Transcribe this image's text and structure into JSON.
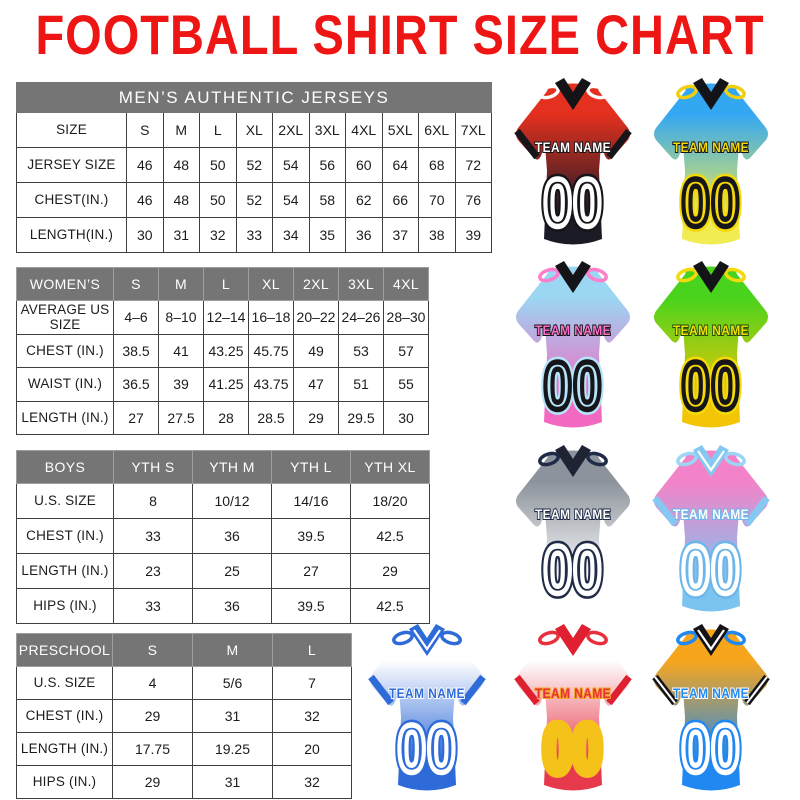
{
  "title": "FOOTBALL SHIRT SIZE CHART",
  "accent_color": "#ee1515",
  "table_header_bg": "#757575",
  "tables": {
    "mens": {
      "title": "MEN’S AUTHENTIC JERSEYS",
      "rows": [
        [
          "SIZE",
          "S",
          "M",
          "L",
          "XL",
          "2XL",
          "3XL",
          "4XL",
          "5XL",
          "6XL",
          "7XL"
        ],
        [
          "JERSEY SIZE",
          "46",
          "48",
          "50",
          "52",
          "54",
          "56",
          "60",
          "64",
          "68",
          "72"
        ],
        [
          "CHEST(IN.)",
          "46",
          "48",
          "50",
          "52",
          "54",
          "58",
          "62",
          "66",
          "70",
          "76"
        ],
        [
          "LENGTH(IN.)",
          "30",
          "31",
          "32",
          "33",
          "34",
          "35",
          "36",
          "37",
          "38",
          "39"
        ]
      ]
    },
    "womens": {
      "header_row": [
        "WOMEN’S",
        "S",
        "M",
        "L",
        "XL",
        "2XL",
        "3XL",
        "4XL"
      ],
      "rows": [
        [
          "AVERAGE US SIZE",
          "4–6",
          "8–10",
          "12–14",
          "16–18",
          "20–22",
          "24–26",
          "28–30"
        ],
        [
          "CHEST (IN.)",
          "38.5",
          "41",
          "43.25",
          "45.75",
          "49",
          "53",
          "57"
        ],
        [
          "WAIST (IN.)",
          "36.5",
          "39",
          "41.25",
          "43.75",
          "47",
          "51",
          "55"
        ],
        [
          "LENGTH (IN.)",
          "27",
          "27.5",
          "28",
          "28.5",
          "29",
          "29.5",
          "30"
        ]
      ]
    },
    "boys": {
      "header_row": [
        "BOYS",
        "YTH S",
        "YTH M",
        "YTH L",
        "YTH XL"
      ],
      "rows": [
        [
          "U.S. SIZE",
          "8",
          "10/12",
          "14/16",
          "18/20"
        ],
        [
          "CHEST (IN.)",
          "33",
          "36",
          "39.5",
          "42.5"
        ],
        [
          "LENGTH (IN.)",
          "23",
          "25",
          "27",
          "29"
        ],
        [
          "HIPS (IN.)",
          "33",
          "36",
          "39.5",
          "42.5"
        ]
      ]
    },
    "preschool": {
      "header_row": [
        "PRESCHOOL",
        "S",
        "M",
        "L"
      ],
      "rows": [
        [
          "U.S. SIZE",
          "4",
          "5/6",
          "7"
        ],
        [
          "CHEST (IN.)",
          "29",
          "31",
          "32"
        ],
        [
          "LENGTH (IN.)",
          "17.75",
          "19.25",
          "20"
        ],
        [
          "HIPS (IN.)",
          "29",
          "31",
          "32"
        ]
      ]
    }
  },
  "jerseys": [
    {
      "name": "red-black",
      "team_label": "TEAM NAME",
      "number": "00",
      "body_top": "#e3301f",
      "body_bottom": "#1b1b26",
      "collar": "#131318",
      "collar_stripe": null,
      "loop": "#ffffff",
      "cuff": "#15151a",
      "cuff2": null,
      "name_fill": "#ffffff",
      "name_stroke": "#15151a",
      "num_top": "#a21a20",
      "num_bottom": "#23232e",
      "num_inner": "#ffffff",
      "num_outer": "#15151a"
    },
    {
      "name": "blue-yellow",
      "team_label": "TEAM NAME",
      "number": "00",
      "body_top": "#34a7f2",
      "body_bottom": "#f0ec52",
      "collar": "#131318",
      "collar_stripe": null,
      "loop": "#f2cf0e",
      "cuff": null,
      "cuff2": null,
      "name_fill": "#f5d90a",
      "name_stroke": "#15151a",
      "num_top": "#2f9ef0",
      "num_bottom": "#45b0e8",
      "num_inner": "#15151a",
      "num_outer": "#f5d90a"
    },
    {
      "name": "skyblue-pink",
      "team_label": "TEAM NAME",
      "number": "00",
      "body_top": "#9bd6f3",
      "body_bottom": "#f368c1",
      "collar": "#131318",
      "collar_stripe": null,
      "loop": "#ff7ecb",
      "cuff": null,
      "cuff2": null,
      "name_fill": "#ff6ec7",
      "name_stroke": "#15151a",
      "num_top": "#f583cd",
      "num_bottom": "#7cc6ee",
      "num_inner": "#15151a",
      "num_outer": "#b5e3f8"
    },
    {
      "name": "green-gold",
      "team_label": "TEAM NAME",
      "number": "00",
      "body_top": "#49d31d",
      "body_bottom": "#f2c606",
      "collar": "#131318",
      "collar_stripe": null,
      "loop": "#f5d90a",
      "cuff": null,
      "cuff2": null,
      "name_fill": "#f0e002",
      "name_stroke": "#234d0a",
      "num_top": "#3ecf1e",
      "num_bottom": "#8ed410",
      "num_inner": "#15151a",
      "num_outer": "#f5d90a"
    },
    {
      "name": "gray-white",
      "team_label": "TEAM NAME",
      "number": "00",
      "body_top": "#8d939c",
      "body_bottom": "#ffffff",
      "collar": "#1e2433",
      "collar_stripe": null,
      "loop": "#1f2b47",
      "cuff": null,
      "cuff2": null,
      "name_fill": "#ffffff",
      "name_stroke": "#1f2b47",
      "num_top": "#28355a",
      "num_bottom": "#1b2338",
      "num_inner": "#ffffff",
      "num_outer": "#1f2b47"
    },
    {
      "name": "pink-skyblue",
      "team_label": "TEAM NAME",
      "number": "00",
      "body_top": "#f383c8",
      "body_bottom": "#7cc4f0",
      "collar": "#85c9f2",
      "collar_stripe": "#ffffff",
      "loop": "#9bd6f5",
      "cuff": "#85c9f2",
      "cuff2": null,
      "name_fill": "#ffffff",
      "name_stroke": "#6db6ea",
      "num_top": "#a5d9f5",
      "num_bottom": "#8ccbf2",
      "num_inner": "#ffffff",
      "num_outer": "#6db6ea"
    },
    {
      "name": "white-royal",
      "team_label": "TEAM NAME",
      "number": "00",
      "body_top": "#ffffff",
      "body_bottom": "#2e6ad8",
      "collar": "#2e6ad8",
      "collar_stripe": "#ffffff",
      "loop": "#2e6ad8",
      "cuff": "#2e6ad8",
      "cuff2": null,
      "name_fill": "#2e6ad8",
      "name_stroke": "#ffffff",
      "num_top": "#4a80e0",
      "num_bottom": "#2a5ecc",
      "num_inner": "#ffffff",
      "num_outer": "#2e6ad8"
    },
    {
      "name": "white-red",
      "team_label": "TEAM NAME",
      "number": "00",
      "body_top": "#ffffff",
      "body_bottom": "#e63a4c",
      "collar": "#df2030",
      "collar_stripe": null,
      "loop": "#e8303c",
      "cuff": "#df2030",
      "cuff2": null,
      "name_fill": "#e8303c",
      "name_stroke": "#f5a623",
      "num_top": "#e8303c",
      "num_bottom": "#d42838",
      "num_inner": "#f5c21a",
      "num_outer": "#f5c21a"
    },
    {
      "name": "orange-blue",
      "team_label": "TEAM NAME",
      "number": "00",
      "body_top": "#f7a61c",
      "body_bottom": "#2088f0",
      "collar": "#131318",
      "collar_stripe": "#ffffff",
      "loop": "#2088f0",
      "cuff": "#131318",
      "cuff2": "#ffffff",
      "name_fill": "#2088f0",
      "name_stroke": "#ffffff",
      "num_top": "#f7941d",
      "num_bottom": "#f7a61c",
      "num_inner": "#ffffff",
      "num_outer": "#2088f0"
    }
  ]
}
